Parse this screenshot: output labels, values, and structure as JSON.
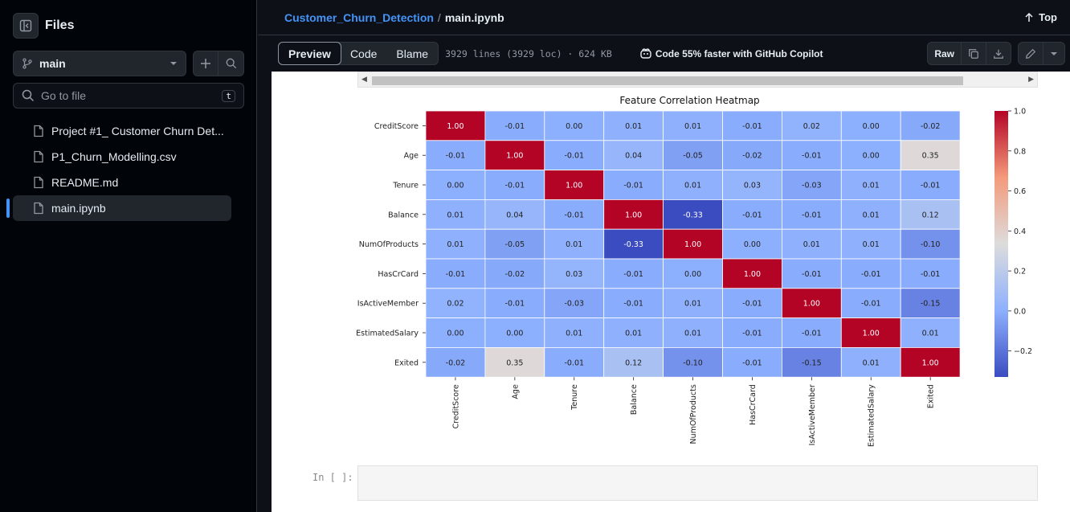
{
  "sidebar": {
    "title": "Files",
    "branch": "main",
    "search_placeholder": "Go to file",
    "search_shortcut": "t",
    "files": [
      {
        "name": "Project #1_ Customer Churn Det..."
      },
      {
        "name": "P1_Churn_Modelling.csv"
      },
      {
        "name": "README.md"
      },
      {
        "name": "main.ipynb"
      }
    ]
  },
  "header": {
    "repo": "Customer_Churn_Detection",
    "separator": "/",
    "file": "main.ipynb",
    "top_label": "Top"
  },
  "toolbar": {
    "tabs": [
      "Preview",
      "Code",
      "Blame"
    ],
    "meta": "3929 lines (3929 loc) · 624 KB",
    "copilot": "Code 55% faster with GitHub Copilot",
    "raw_label": "Raw"
  },
  "notebook": {
    "prompt": "In [ ]:"
  },
  "colors": {
    "link": "#4493f8",
    "bg": "#0d1117"
  },
  "chart_data": {
    "type": "heatmap",
    "title": "Feature Correlation Heatmap",
    "labels": [
      "CreditScore",
      "Age",
      "Tenure",
      "Balance",
      "NumOfProducts",
      "HasCrCard",
      "IsActiveMember",
      "EstimatedSalary",
      "Exited"
    ],
    "values": [
      [
        1.0,
        -0.01,
        0.0,
        0.01,
        0.01,
        -0.01,
        0.02,
        0.0,
        -0.02
      ],
      [
        -0.01,
        1.0,
        -0.01,
        0.04,
        -0.05,
        -0.02,
        -0.01,
        0.0,
        0.35
      ],
      [
        0.0,
        -0.01,
        1.0,
        -0.01,
        0.01,
        0.03,
        -0.03,
        0.01,
        -0.01
      ],
      [
        0.01,
        0.04,
        -0.01,
        1.0,
        -0.33,
        -0.01,
        -0.01,
        0.01,
        0.12
      ],
      [
        0.01,
        -0.05,
        0.01,
        -0.33,
        1.0,
        0.0,
        0.01,
        0.01,
        -0.1
      ],
      [
        -0.01,
        -0.02,
        0.03,
        -0.01,
        0.0,
        1.0,
        -0.01,
        -0.01,
        -0.01
      ],
      [
        0.02,
        -0.01,
        -0.03,
        -0.01,
        0.01,
        -0.01,
        1.0,
        -0.01,
        -0.15
      ],
      [
        0.0,
        0.0,
        0.01,
        0.01,
        0.01,
        -0.01,
        -0.01,
        1.0,
        0.01
      ],
      [
        -0.02,
        0.35,
        -0.01,
        0.12,
        -0.1,
        -0.01,
        -0.15,
        0.01,
        1.0
      ]
    ],
    "colorbar_ticks": [
      "1.0",
      "0.8",
      "0.6",
      "0.4",
      "0.2",
      "0.0",
      "−0.2"
    ],
    "colorbar_range": [
      -0.33,
      1.0
    ],
    "colormap": "coolwarm"
  }
}
